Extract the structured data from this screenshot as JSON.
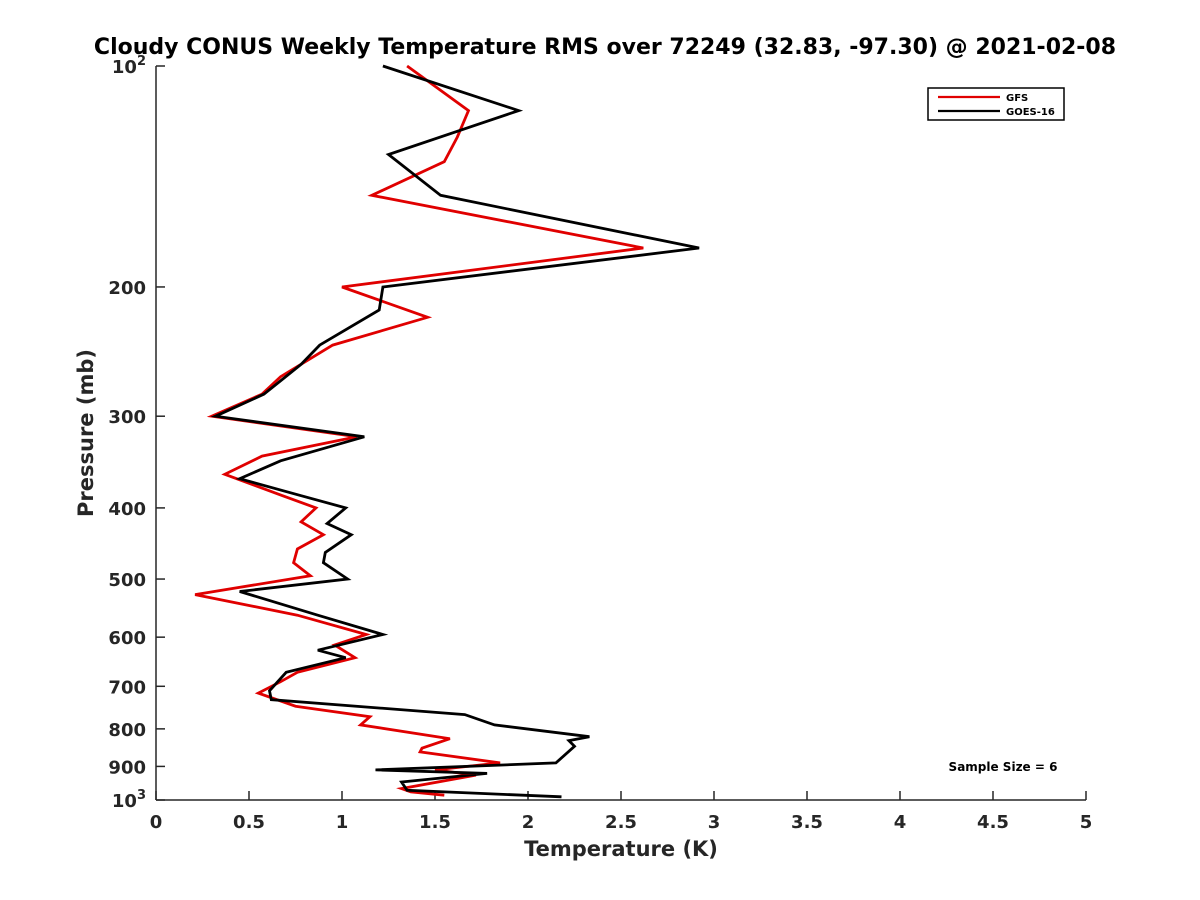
{
  "chart_data": {
    "type": "line",
    "title": "Cloudy CONUS Weekly Temperature RMS over 72249 (32.83, -97.30) @ 2021-02-08",
    "xlabel": "Temperature (K)",
    "ylabel": "Pressure (mb)",
    "xlim": [
      0,
      5
    ],
    "ylim": [
      100,
      1000
    ],
    "y_scale": "log",
    "y_reversed": true,
    "grid": false,
    "legend_position": "top-right",
    "x_ticks": [
      0,
      0.5,
      1,
      1.5,
      2,
      2.5,
      3,
      3.5,
      4,
      4.5,
      5
    ],
    "x_tick_labels": [
      "0",
      "0.5",
      "1",
      "1.5",
      "2",
      "2.5",
      "3",
      "3.5",
      "4",
      "4.5",
      "5"
    ],
    "y_ticks": [
      100,
      200,
      300,
      400,
      500,
      600,
      700,
      800,
      900,
      1000
    ],
    "y_tick_labels": [
      {
        "base": "10",
        "exp": "2"
      },
      {
        "base": "200",
        "exp": ""
      },
      {
        "base": "300",
        "exp": ""
      },
      {
        "base": "400",
        "exp": ""
      },
      {
        "base": "500",
        "exp": ""
      },
      {
        "base": "600",
        "exp": ""
      },
      {
        "base": "700",
        "exp": ""
      },
      {
        "base": "800",
        "exp": ""
      },
      {
        "base": "900",
        "exp": ""
      },
      {
        "base": "10",
        "exp": "3"
      }
    ],
    "annotation": "Sample Size = 6",
    "series": [
      {
        "name": "GFS",
        "color": "#e00000",
        "points": [
          [
            1.35,
            100
          ],
          [
            1.68,
            115
          ],
          [
            1.62,
            125
          ],
          [
            1.55,
            135
          ],
          [
            1.16,
            150
          ],
          [
            2.62,
            177
          ],
          [
            1.0,
            200
          ],
          [
            1.46,
            220
          ],
          [
            0.95,
            240
          ],
          [
            0.67,
            265
          ],
          [
            0.57,
            280
          ],
          [
            0.3,
            300
          ],
          [
            1.08,
            320
          ],
          [
            0.57,
            340
          ],
          [
            0.37,
            360
          ],
          [
            0.68,
            385
          ],
          [
            0.86,
            400
          ],
          [
            0.78,
            418
          ],
          [
            0.9,
            435
          ],
          [
            0.76,
            455
          ],
          [
            0.74,
            475
          ],
          [
            0.83,
            495
          ],
          [
            0.21,
            525
          ],
          [
            0.76,
            560
          ],
          [
            1.13,
            595
          ],
          [
            0.96,
            615
          ],
          [
            1.07,
            640
          ],
          [
            0.76,
            670
          ],
          [
            0.67,
            690
          ],
          [
            0.55,
            715
          ],
          [
            0.75,
            745
          ],
          [
            1.15,
            770
          ],
          [
            1.1,
            790
          ],
          [
            1.58,
            825
          ],
          [
            1.43,
            850
          ],
          [
            1.42,
            860
          ],
          [
            1.85,
            890
          ],
          [
            1.5,
            910
          ],
          [
            1.72,
            925
          ],
          [
            1.32,
            965
          ],
          [
            1.37,
            975
          ],
          [
            1.55,
            985
          ]
        ]
      },
      {
        "name": "GOES-16",
        "color": "#000000",
        "points": [
          [
            1.22,
            100
          ],
          [
            1.95,
            115
          ],
          [
            1.25,
            132
          ],
          [
            1.53,
            150
          ],
          [
            2.92,
            177
          ],
          [
            1.22,
            200
          ],
          [
            1.2,
            215
          ],
          [
            0.88,
            240
          ],
          [
            0.78,
            255
          ],
          [
            0.58,
            280
          ],
          [
            0.32,
            300
          ],
          [
            1.12,
            320
          ],
          [
            0.67,
            345
          ],
          [
            0.45,
            365
          ],
          [
            0.78,
            385
          ],
          [
            1.02,
            400
          ],
          [
            0.92,
            420
          ],
          [
            1.05,
            435
          ],
          [
            0.91,
            460
          ],
          [
            0.9,
            475
          ],
          [
            1.03,
            500
          ],
          [
            0.45,
            520
          ],
          [
            0.87,
            560
          ],
          [
            1.22,
            595
          ],
          [
            0.87,
            625
          ],
          [
            1.02,
            640
          ],
          [
            0.7,
            670
          ],
          [
            0.61,
            710
          ],
          [
            0.62,
            730
          ],
          [
            1.66,
            765
          ],
          [
            1.82,
            790
          ],
          [
            2.33,
            820
          ],
          [
            2.22,
            830
          ],
          [
            2.25,
            845
          ],
          [
            2.15,
            890
          ],
          [
            1.18,
            910
          ],
          [
            1.78,
            920
          ],
          [
            1.32,
            945
          ],
          [
            1.35,
            970
          ],
          [
            2.18,
            990
          ]
        ]
      }
    ]
  }
}
